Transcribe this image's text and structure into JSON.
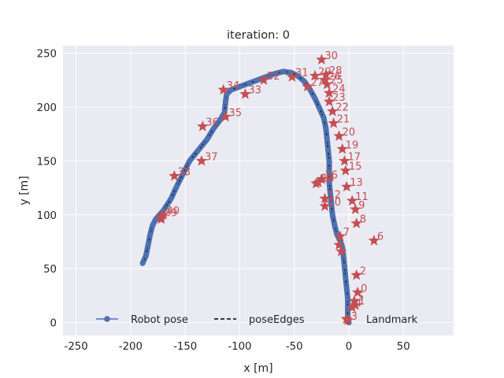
{
  "chart_data": {
    "type": "scatter",
    "title": "iteration: 0",
    "xlabel": "x [m]",
    "ylabel": "y [m]",
    "xlim": [
      -262,
      96
    ],
    "ylim": [
      -12,
      257
    ],
    "xticks": [
      -250,
      -200,
      -150,
      -100,
      -50,
      0,
      50
    ],
    "yticks": [
      0,
      50,
      100,
      150,
      200,
      250
    ],
    "grid": true,
    "legend_position": "bottom-center",
    "legend": [
      "Robot pose",
      "poseEdges",
      "Landmark"
    ],
    "colors": {
      "robot": "#4c72b0",
      "edges": "#000000",
      "landmark": "#c44e52",
      "background": "#eaeaf2"
    },
    "robot_path": [
      [
        -189,
        55
      ],
      [
        -186,
        62
      ],
      [
        -184,
        72
      ],
      [
        -182,
        82
      ],
      [
        -180,
        90
      ],
      [
        -177,
        96
      ],
      [
        -170,
        104
      ],
      [
        -163,
        115
      ],
      [
        -158,
        126
      ],
      [
        -152,
        138
      ],
      [
        -146,
        150
      ],
      [
        -138,
        160
      ],
      [
        -130,
        170
      ],
      [
        -124,
        180
      ],
      [
        -118,
        188
      ],
      [
        -114,
        195
      ],
      [
        -113,
        205
      ],
      [
        -112,
        212
      ],
      [
        -108,
        216
      ],
      [
        -100,
        219
      ],
      [
        -92,
        222
      ],
      [
        -84,
        225
      ],
      [
        -76,
        228
      ],
      [
        -68,
        231
      ],
      [
        -60,
        233
      ],
      [
        -53,
        232
      ],
      [
        -47,
        229
      ],
      [
        -41,
        224
      ],
      [
        -36,
        217
      ],
      [
        -31,
        208
      ],
      [
        -27,
        199
      ],
      [
        -23,
        190
      ],
      [
        -21,
        180
      ],
      [
        -20,
        170
      ],
      [
        -19,
        160
      ],
      [
        -18,
        150
      ],
      [
        -18,
        140
      ],
      [
        -18,
        130
      ],
      [
        -17,
        120
      ],
      [
        -16,
        110
      ],
      [
        -15,
        100
      ],
      [
        -13,
        90
      ],
      [
        -11,
        82
      ],
      [
        -8,
        76
      ],
      [
        -6,
        70
      ],
      [
        -5,
        62
      ],
      [
        -4,
        52
      ],
      [
        -3,
        42
      ],
      [
        -2,
        32
      ],
      [
        -1,
        22
      ],
      [
        -1,
        12
      ],
      [
        -1,
        5
      ],
      [
        0,
        0
      ]
    ],
    "landmarks": [
      {
        "id": "0",
        "x": 8,
        "y": 28
      },
      {
        "id": "1",
        "x": 6,
        "y": 16
      },
      {
        "id": "2",
        "x": 7,
        "y": 44
      },
      {
        "id": "3",
        "x": -1,
        "y": 2
      },
      {
        "id": "4",
        "x": 3,
        "y": 14
      },
      {
        "id": "5",
        "x": 5,
        "y": 20
      },
      {
        "id": "6",
        "x": 23,
        "y": 76
      },
      {
        "id": "7",
        "x": -8,
        "y": 80
      },
      {
        "id": "8",
        "x": 7,
        "y": 92
      },
      {
        "id": "9",
        "x": 6,
        "y": 105
      },
      {
        "id": "10",
        "x": -22,
        "y": 108
      },
      {
        "id": "11",
        "x": 3,
        "y": 113
      },
      {
        "id": "12",
        "x": -22,
        "y": 115
      },
      {
        "id": "13",
        "x": -2,
        "y": 126
      },
      {
        "id": "14",
        "x": -28,
        "y": 130
      },
      {
        "id": "15",
        "x": -3,
        "y": 141
      },
      {
        "id": "16",
        "x": -25,
        "y": 133
      },
      {
        "id": "17",
        "x": -4,
        "y": 150
      },
      {
        "id": "18",
        "x": -30,
        "y": 129
      },
      {
        "id": "19",
        "x": -6,
        "y": 161
      },
      {
        "id": "20",
        "x": -9,
        "y": 173
      },
      {
        "id": "21",
        "x": -14,
        "y": 185
      },
      {
        "id": "22",
        "x": -15,
        "y": 196
      },
      {
        "id": "23",
        "x": -18,
        "y": 205
      },
      {
        "id": "24",
        "x": -18,
        "y": 213
      },
      {
        "id": "25",
        "x": -20,
        "y": 221
      },
      {
        "id": "26",
        "x": -22,
        "y": 225
      },
      {
        "id": "27",
        "x": -38,
        "y": 219
      },
      {
        "id": "28",
        "x": -21,
        "y": 230
      },
      {
        "id": "29",
        "x": -31,
        "y": 229
      },
      {
        "id": "30",
        "x": -25,
        "y": 244
      },
      {
        "id": "31",
        "x": -52,
        "y": 228
      },
      {
        "id": "32",
        "x": -78,
        "y": 225
      },
      {
        "id": "33",
        "x": -95,
        "y": 212
      },
      {
        "id": "34",
        "x": -115,
        "y": 216
      },
      {
        "id": "35",
        "x": -113,
        "y": 191
      },
      {
        "id": "36",
        "x": -134,
        "y": 182
      },
      {
        "id": "37",
        "x": -135,
        "y": 150
      },
      {
        "id": "38",
        "x": -160,
        "y": 136
      },
      {
        "id": "39",
        "x": -172,
        "y": 98
      },
      {
        "id": "40",
        "x": -170,
        "y": 100
      },
      {
        "id": "",
        "x": -9,
        "y": 72
      },
      {
        "id": "",
        "x": -7,
        "y": 66
      },
      {
        "id": "",
        "x": -172,
        "y": 96
      }
    ]
  }
}
